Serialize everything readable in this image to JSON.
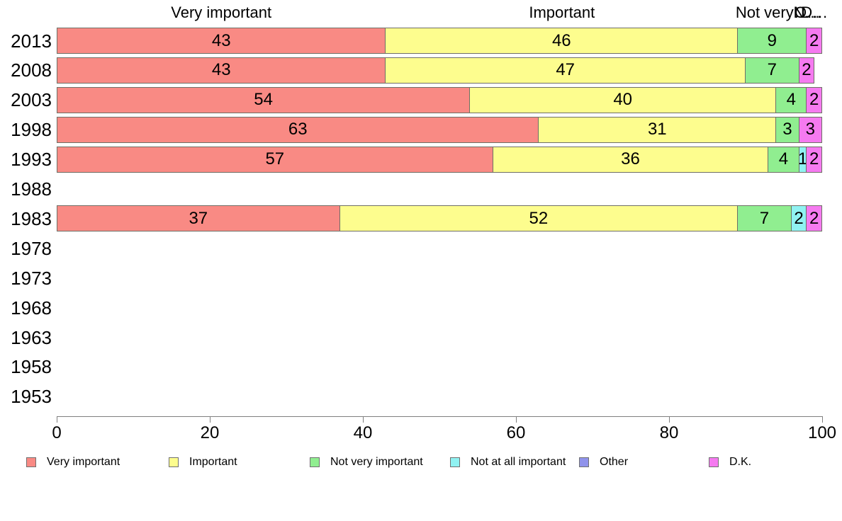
{
  "chart_data": {
    "type": "bar",
    "orientation": "horizontal",
    "stacked": true,
    "title": "",
    "xlabel": "",
    "ylabel": "",
    "grid": false,
    "xlim": [
      0,
      100
    ],
    "xticks": [
      "0",
      "20",
      "40",
      "60",
      "80",
      "100"
    ],
    "legend_position": "bottom",
    "categories": [
      "2013",
      "2008",
      "2003",
      "1998",
      "1993",
      "1988",
      "1983",
      "1978",
      "1973",
      "1968",
      "1963",
      "1958",
      "1953"
    ],
    "series": [
      {
        "name": "Very important",
        "color": "#f98a84",
        "values": [
          43,
          43,
          54,
          63,
          57,
          0,
          37,
          0,
          0,
          0,
          0,
          0,
          0
        ]
      },
      {
        "name": "Important",
        "color": "#fdfd8e",
        "values": [
          46,
          47,
          40,
          31,
          36,
          0,
          52,
          0,
          0,
          0,
          0,
          0,
          0
        ]
      },
      {
        "name": "Not very important",
        "color": "#90ee90",
        "values": [
          9,
          7,
          4,
          3,
          4,
          0,
          7,
          0,
          0,
          0,
          0,
          0,
          0
        ]
      },
      {
        "name": "Not at all important",
        "color": "#90f2f2",
        "values": [
          0,
          0,
          0,
          0,
          1,
          0,
          2,
          0,
          0,
          0,
          0,
          0,
          0
        ]
      },
      {
        "name": "Other",
        "color": "#9093eb",
        "values": [
          0,
          0,
          0,
          0,
          0,
          0,
          0,
          0,
          0,
          0,
          0,
          0,
          0
        ]
      },
      {
        "name": "D.K.",
        "color": "#f57af0",
        "values": [
          2,
          2,
          2,
          3,
          2,
          0,
          2,
          0,
          0,
          0,
          0,
          0,
          0
        ]
      }
    ],
    "column_headers": [
      {
        "text": "Very important",
        "x_pct": 21.5
      },
      {
        "text": "Important",
        "x_pct": 66
      },
      {
        "text": "Not very…",
        "x_pct": 93.5
      },
      {
        "text": "N…",
        "x_pct": 98
      },
      {
        "text": "O…",
        "x_pct": 98.2
      },
      {
        "text": "D…",
        "x_pct": 99
      }
    ],
    "legend_items": [
      "Very important",
      "Important",
      "Not very important",
      "Not at all important",
      "Other",
      "D.K."
    ]
  }
}
